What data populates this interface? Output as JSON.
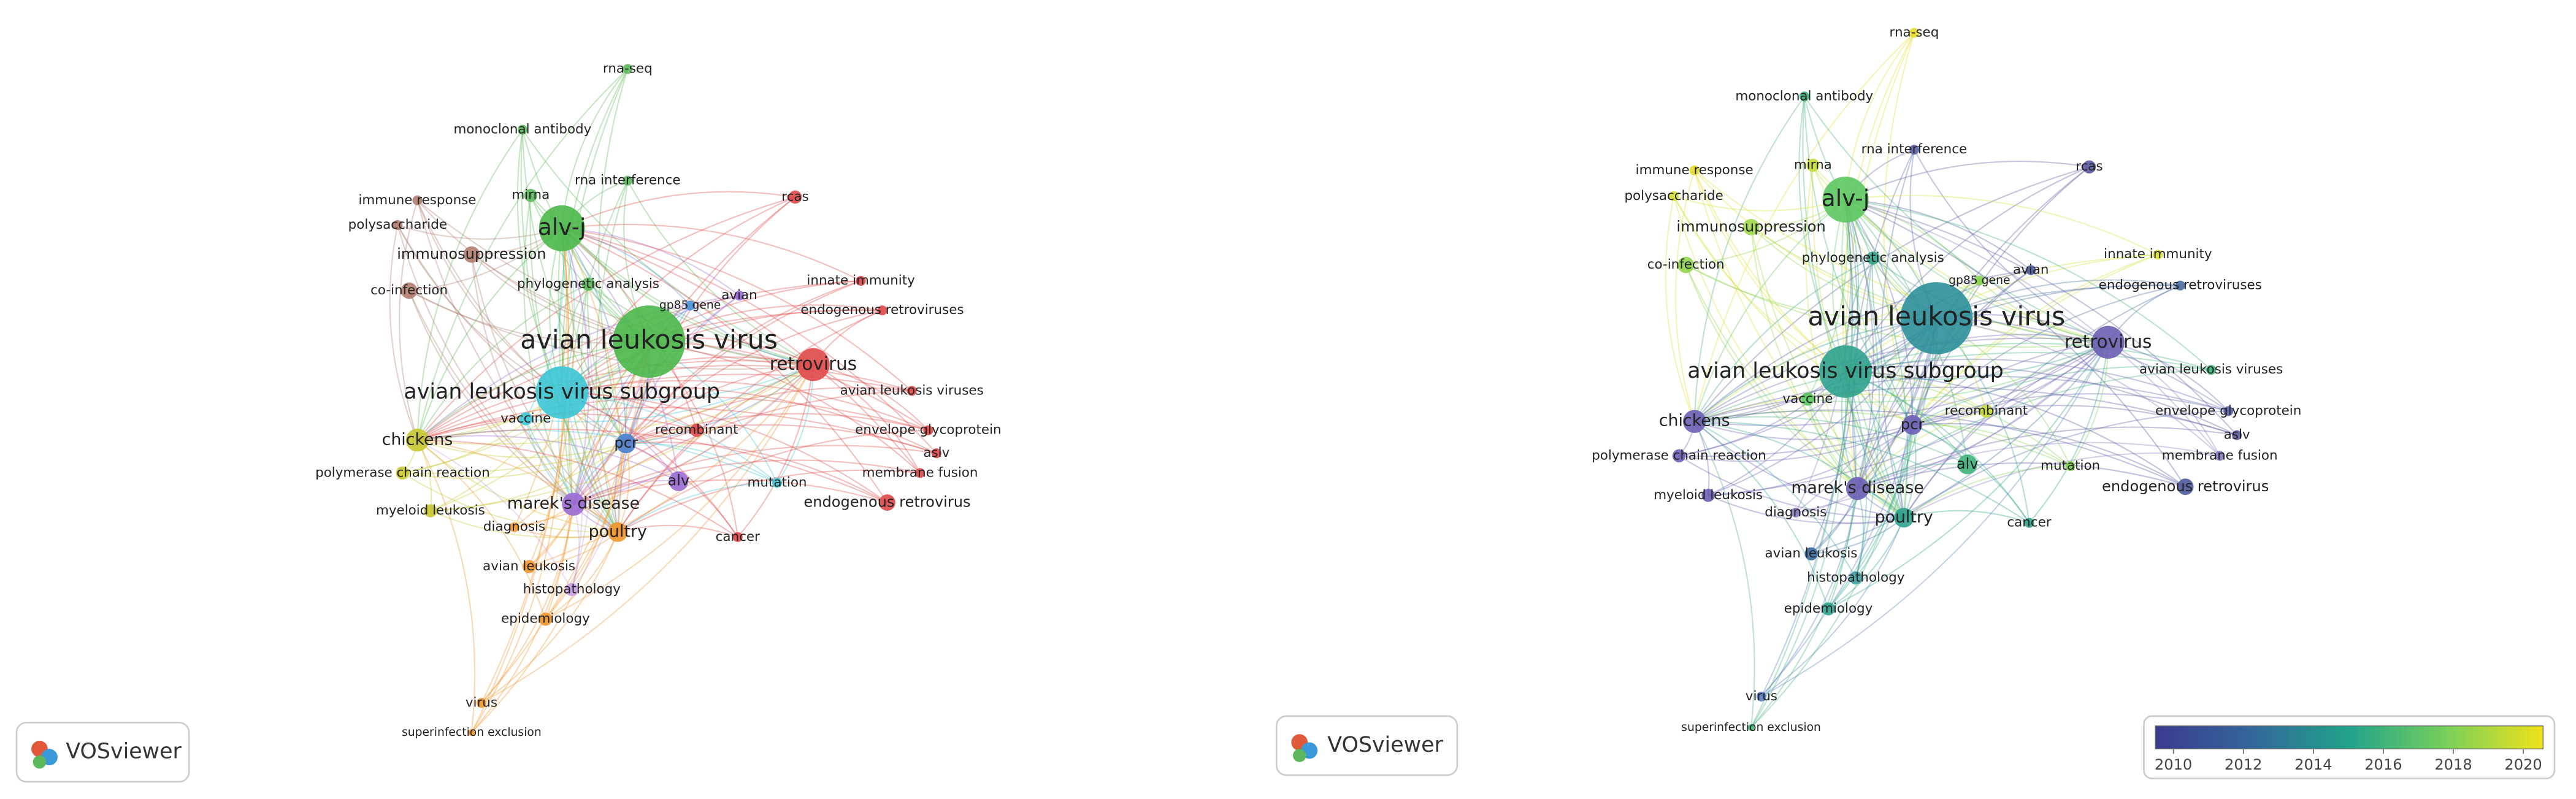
{
  "left_map": {
    "nodes": [
      {
        "label": "rna-seq"
      },
      {
        "label": "monoclonal antibody"
      },
      {
        "label": "rna interference"
      },
      {
        "label": "rcas"
      },
      {
        "label": "immune response"
      },
      {
        "label": "mirna"
      },
      {
        "label": "polysaccharide"
      },
      {
        "label": "alv-j"
      },
      {
        "label": "immunosuppression"
      },
      {
        "label": "innate immunity"
      },
      {
        "label": "phylogenetic analysis"
      },
      {
        "label": "co-infection"
      },
      {
        "label": "avian"
      },
      {
        "label": "endogenous retroviruses"
      },
      {
        "label": "gp85 gene"
      },
      {
        "label": "avian leukosis virus"
      },
      {
        "label": "retrovirus"
      },
      {
        "label": "avian leukosis virus subgroup"
      },
      {
        "label": "avian leukosis viruses"
      },
      {
        "label": "chickens"
      },
      {
        "label": "vaccine"
      },
      {
        "label": "recombinant"
      },
      {
        "label": "envelope glycoprotein"
      },
      {
        "label": "pcr"
      },
      {
        "label": "aslv"
      },
      {
        "label": "polymerase chain reaction"
      },
      {
        "label": "membrane fusion"
      },
      {
        "label": "alv"
      },
      {
        "label": "mutation"
      },
      {
        "label": "marek's disease"
      },
      {
        "label": "endogenous retrovirus"
      },
      {
        "label": "myeloid leukosis"
      },
      {
        "label": "diagnosis"
      },
      {
        "label": "poultry"
      },
      {
        "label": "cancer"
      },
      {
        "label": "avian leukosis"
      },
      {
        "label": "histopathology"
      },
      {
        "label": "epidemiology"
      },
      {
        "label": "virus"
      },
      {
        "label": "superinfection exclusion"
      }
    ],
    "logo": "VOSviewer"
  },
  "right_map": {
    "nodes": [
      {
        "label": "rna-seq"
      },
      {
        "label": "monoclonal antibody"
      },
      {
        "label": "rna interference"
      },
      {
        "label": "rcas"
      },
      {
        "label": "immune response"
      },
      {
        "label": "mirna"
      },
      {
        "label": "polysaccharide"
      },
      {
        "label": "alv-j"
      },
      {
        "label": "immunosuppression"
      },
      {
        "label": "innate immunity"
      },
      {
        "label": "phylogenetic analysis"
      },
      {
        "label": "co-infection"
      },
      {
        "label": "avian"
      },
      {
        "label": "endogenous retroviruses"
      },
      {
        "label": "gp85 gene"
      },
      {
        "label": "avian leukosis virus"
      },
      {
        "label": "retrovirus"
      },
      {
        "label": "avian leukosis virus subgroup"
      },
      {
        "label": "avian leukosis viruses"
      },
      {
        "label": "chickens"
      },
      {
        "label": "vaccine"
      },
      {
        "label": "recombinant"
      },
      {
        "label": "envelope glycoprotein"
      },
      {
        "label": "pcr"
      },
      {
        "label": "aslv"
      },
      {
        "label": "polymerase chain reaction"
      },
      {
        "label": "membrane fusion"
      },
      {
        "label": "alv"
      },
      {
        "label": "mutation"
      },
      {
        "label": "marek's disease"
      },
      {
        "label": "endogenous retrovirus"
      },
      {
        "label": "myeloid leukosis"
      },
      {
        "label": "diagnosis"
      },
      {
        "label": "poultry"
      },
      {
        "label": "cancer"
      },
      {
        "label": "avian leukosis"
      },
      {
        "label": "histopathology"
      },
      {
        "label": "epidemiology"
      },
      {
        "label": "virus"
      },
      {
        "label": "superinfection exclusion"
      }
    ],
    "logo": "VOSviewer",
    "color_scale": {
      "ticks": [
        2010,
        2012,
        2014,
        2016,
        2018,
        2020
      ]
    }
  }
}
